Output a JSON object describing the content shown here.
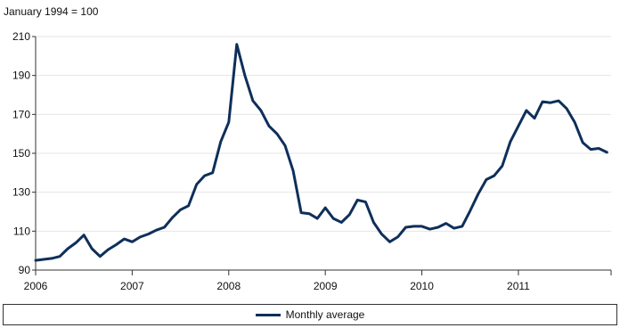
{
  "colors": {
    "line": "#0f2f5a",
    "axis": "#333333",
    "grid": "#e4e4e4"
  },
  "chart_data": {
    "type": "line",
    "title": "",
    "ylabel": "January 1994 = 100",
    "xlabel": "",
    "xlim": [
      2006.0,
      2011.96
    ],
    "ylim": [
      90,
      210
    ],
    "yticks": [
      90,
      110,
      130,
      150,
      170,
      190,
      210
    ],
    "xticks": [
      {
        "value": 2006,
        "label": "2006"
      },
      {
        "value": 2007,
        "label": "2007"
      },
      {
        "value": 2008,
        "label": "2008"
      },
      {
        "value": 2009,
        "label": "2009"
      },
      {
        "value": 2010,
        "label": "2010"
      },
      {
        "value": 2011,
        "label": "2011"
      }
    ],
    "grid": true,
    "legend_position": "bottom",
    "series": [
      {
        "name": "Monthly average",
        "x": [
          2006.0,
          2006.083,
          2006.167,
          2006.25,
          2006.333,
          2006.417,
          2006.5,
          2006.583,
          2006.667,
          2006.75,
          2006.833,
          2006.917,
          2007.0,
          2007.083,
          2007.167,
          2007.25,
          2007.333,
          2007.417,
          2007.5,
          2007.583,
          2007.667,
          2007.75,
          2007.833,
          2007.917,
          2008.0,
          2008.083,
          2008.167,
          2008.25,
          2008.333,
          2008.417,
          2008.5,
          2008.583,
          2008.667,
          2008.75,
          2008.833,
          2008.917,
          2009.0,
          2009.083,
          2009.167,
          2009.25,
          2009.333,
          2009.417,
          2009.5,
          2009.583,
          2009.667,
          2009.75,
          2009.833,
          2009.917,
          2010.0,
          2010.083,
          2010.167,
          2010.25,
          2010.333,
          2010.417,
          2010.5,
          2010.583,
          2010.667,
          2010.75,
          2010.833,
          2010.917,
          2011.0,
          2011.083,
          2011.167,
          2011.25,
          2011.333,
          2011.417,
          2011.5,
          2011.583,
          2011.667,
          2011.75,
          2011.833,
          2011.917
        ],
        "values": [
          95,
          95.5,
          96,
          97,
          101,
          104,
          108,
          101,
          97,
          100.5,
          103,
          106,
          104.5,
          107,
          108.5,
          110.5,
          112,
          117,
          121,
          123,
          134,
          138.5,
          140,
          156,
          166,
          206,
          190,
          177,
          172,
          164,
          160,
          154,
          141,
          119.5,
          119,
          116.5,
          122,
          116.5,
          114.5,
          118.5,
          126,
          125,
          114.5,
          108.5,
          104.5,
          107,
          112,
          112.5,
          112.5,
          111,
          112,
          114,
          111.5,
          112.5,
          120.5,
          129,
          136.5,
          138.5,
          143.5,
          156,
          164,
          172,
          168,
          176.5,
          176,
          177,
          173,
          166,
          155.5,
          152,
          152.5,
          150.5
        ]
      }
    ]
  }
}
